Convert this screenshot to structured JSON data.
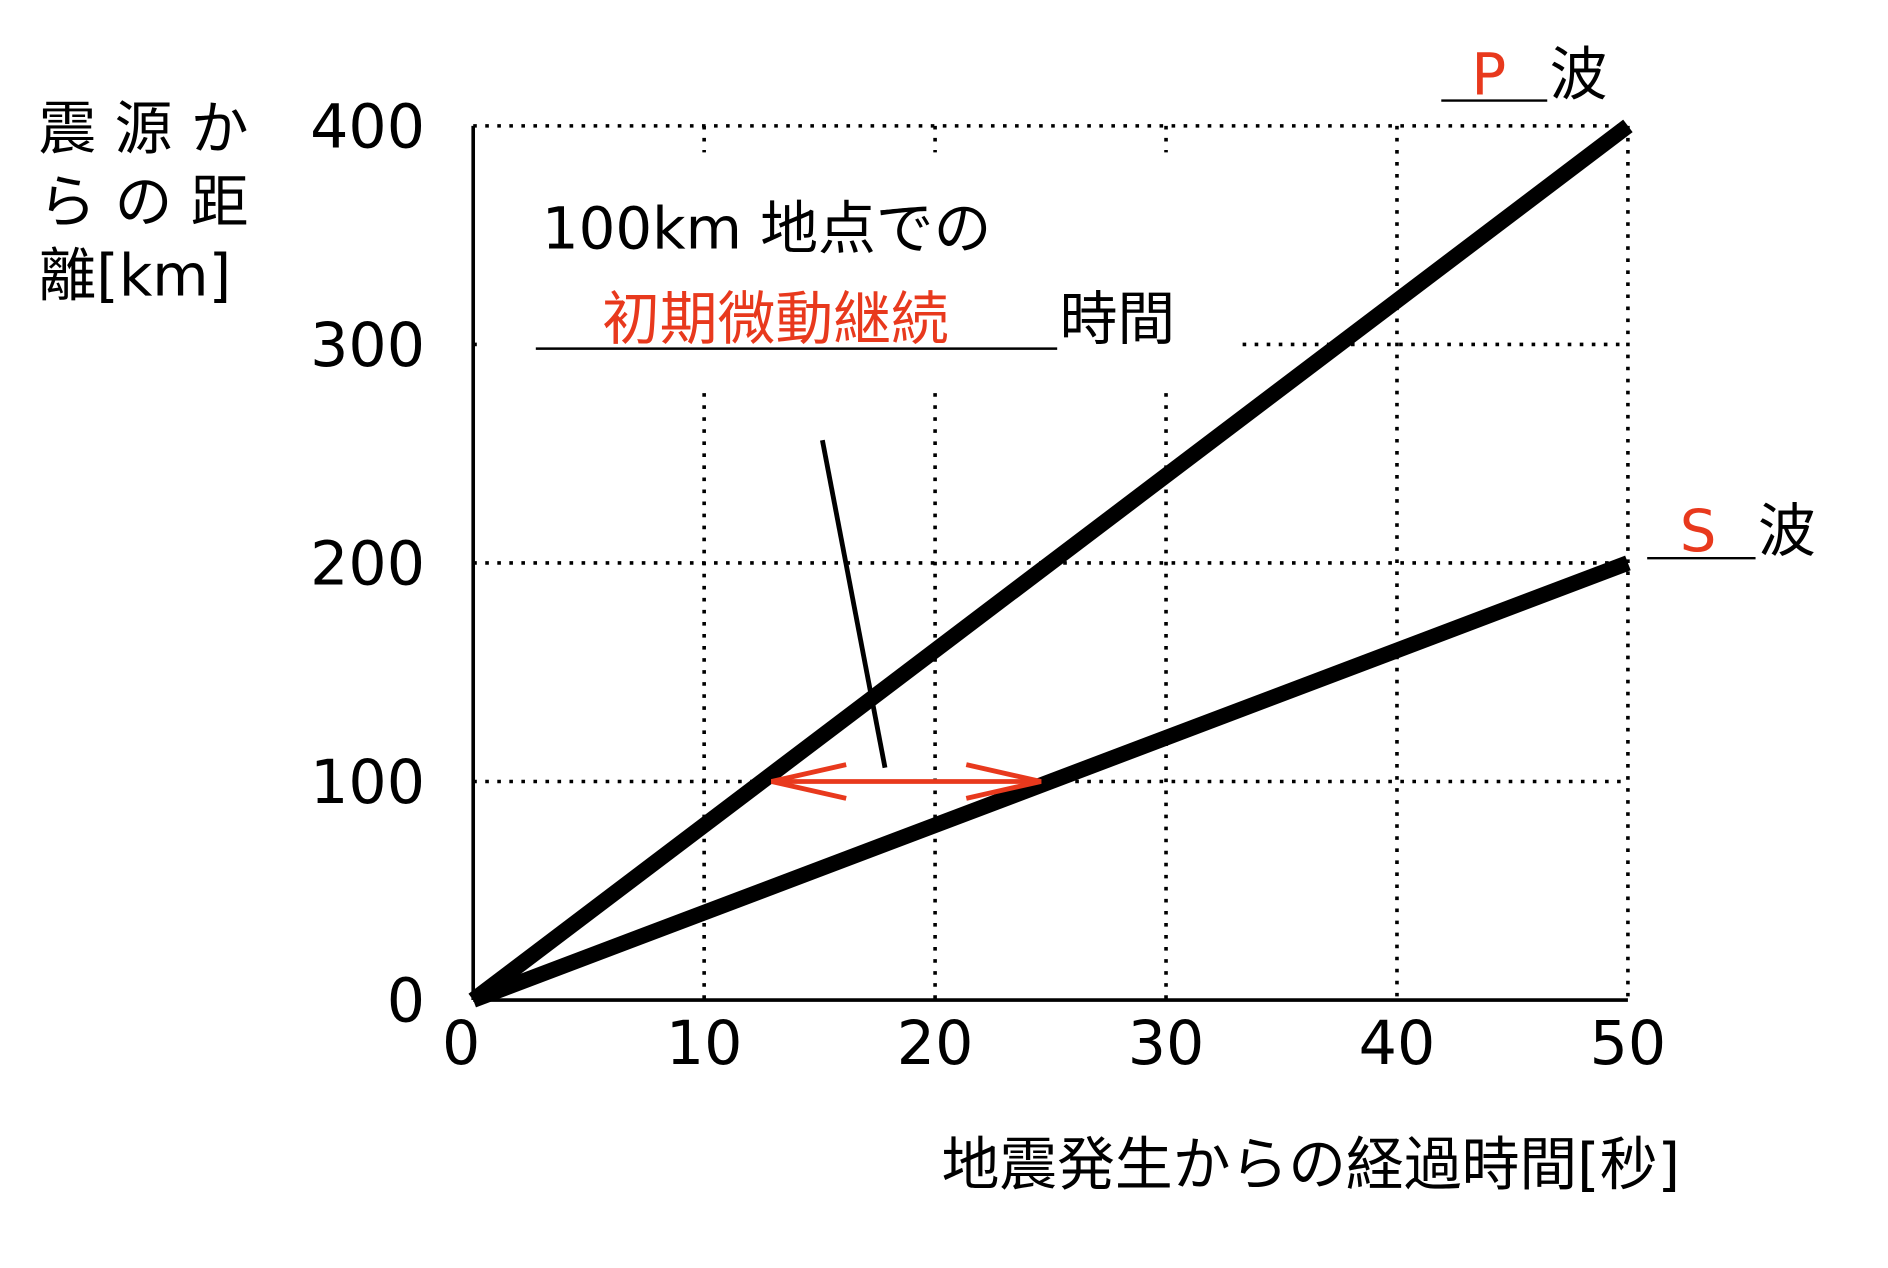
{
  "chart_data": {
    "type": "line",
    "xlabel": "地震発生からの経過時間[秒]",
    "ylabel_lines": [
      "震 源 か",
      "ら の 距",
      "離[km]"
    ],
    "xlim": [
      0,
      50
    ],
    "ylim": [
      0,
      400
    ],
    "x_ticks": [
      "0",
      "10",
      "20",
      "30",
      "40",
      "50"
    ],
    "y_ticks": [
      "0",
      "100",
      "200",
      "300",
      "400"
    ],
    "grid": true,
    "series": [
      {
        "name": "P 波",
        "answer": "P",
        "suffix": "波",
        "x": [
          0,
          50
        ],
        "y": [
          0,
          400
        ],
        "color": "#000000"
      },
      {
        "name": "S 波",
        "answer": "S",
        "suffix": "波",
        "x": [
          0,
          50
        ],
        "y": [
          0,
          200
        ],
        "color": "#000000"
      }
    ],
    "annotation": {
      "line1": "100km 地点での",
      "answer": "初期微動継続",
      "suffix": "時間",
      "arrow_at_distance": 100,
      "arrow_from_time": 12.5,
      "arrow_to_time": 25,
      "arrow_color": "#e8391d"
    },
    "answer_color": "#e8391d"
  }
}
